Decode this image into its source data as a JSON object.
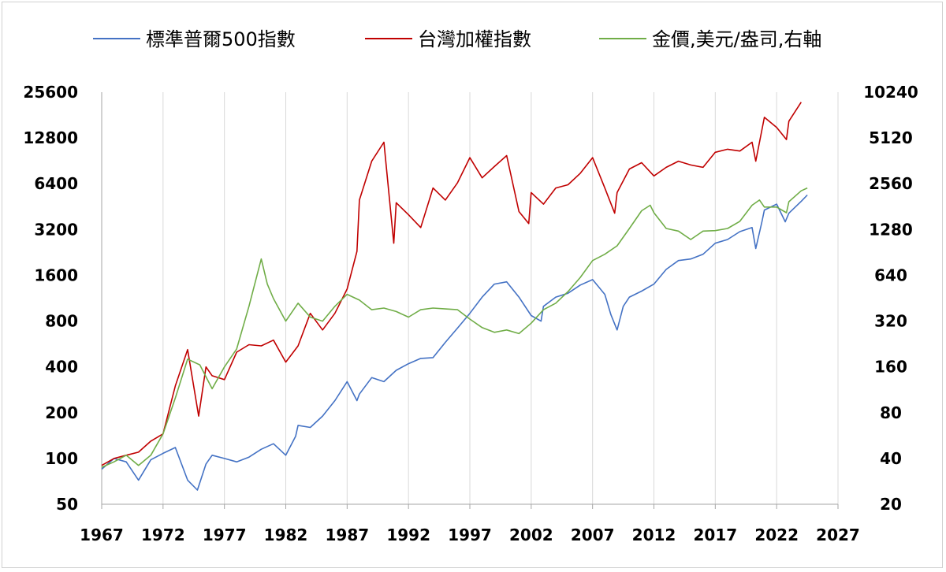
{
  "chart_data": {
    "type": "line",
    "title": "",
    "xlabel": "",
    "ylabel": "",
    "x_axis": {
      "min": 1967,
      "max": 2027,
      "ticks": [
        1967,
        1972,
        1977,
        1982,
        1987,
        1992,
        1997,
        2002,
        2007,
        2012,
        2017,
        2022,
        2027
      ]
    },
    "y_left": {
      "scale": "log2",
      "min": 50,
      "max": 25600,
      "ticks": [
        50,
        100,
        200,
        400,
        800,
        1600,
        3200,
        6400,
        12800,
        25600
      ]
    },
    "y_right": {
      "scale": "log2",
      "min": 20,
      "max": 10240,
      "ticks": [
        20,
        40,
        80,
        160,
        320,
        640,
        1280,
        2560,
        5120,
        10240
      ]
    },
    "grid": "vertical",
    "legend_position": "top",
    "series": [
      {
        "name": "標準普爾500指數",
        "color": "#4472C4",
        "axis": "left",
        "points": [
          [
            1967,
            85
          ],
          [
            1968,
            100
          ],
          [
            1969,
            95
          ],
          [
            1970,
            72
          ],
          [
            1971,
            98
          ],
          [
            1972,
            108
          ],
          [
            1973,
            118
          ],
          [
            1974,
            72
          ],
          [
            1974.8,
            62
          ],
          [
            1975.5,
            92
          ],
          [
            1976,
            105
          ],
          [
            1977,
            100
          ],
          [
            1978,
            95
          ],
          [
            1979,
            102
          ],
          [
            1980,
            115
          ],
          [
            1981,
            125
          ],
          [
            1982,
            105
          ],
          [
            1982.8,
            140
          ],
          [
            1983,
            165
          ],
          [
            1984,
            160
          ],
          [
            1985,
            190
          ],
          [
            1986,
            240
          ],
          [
            1987,
            320
          ],
          [
            1987.8,
            240
          ],
          [
            1988,
            265
          ],
          [
            1989,
            340
          ],
          [
            1990,
            320
          ],
          [
            1991,
            380
          ],
          [
            1992,
            420
          ],
          [
            1993,
            455
          ],
          [
            1994,
            460
          ],
          [
            1995,
            580
          ],
          [
            1996,
            720
          ],
          [
            1997,
            900
          ],
          [
            1998,
            1150
          ],
          [
            1999,
            1400
          ],
          [
            2000,
            1450
          ],
          [
            2001,
            1150
          ],
          [
            2002,
            870
          ],
          [
            2002.8,
            800
          ],
          [
            2003,
            1000
          ],
          [
            2004,
            1150
          ],
          [
            2005,
            1220
          ],
          [
            2006,
            1380
          ],
          [
            2007,
            1500
          ],
          [
            2008,
            1200
          ],
          [
            2008.5,
            880
          ],
          [
            2009,
            700
          ],
          [
            2009.5,
            1000
          ],
          [
            2010,
            1150
          ],
          [
            2011,
            1260
          ],
          [
            2012,
            1400
          ],
          [
            2013,
            1750
          ],
          [
            2014,
            2000
          ],
          [
            2015,
            2050
          ],
          [
            2016,
            2200
          ],
          [
            2017,
            2600
          ],
          [
            2018,
            2750
          ],
          [
            2019,
            3100
          ],
          [
            2020,
            3300
          ],
          [
            2020.3,
            2400
          ],
          [
            2020.8,
            3600
          ],
          [
            2021,
            4300
          ],
          [
            2022,
            4700
          ],
          [
            2022.7,
            3600
          ],
          [
            2023,
            4100
          ],
          [
            2024,
            4900
          ],
          [
            2024.5,
            5400
          ]
        ]
      },
      {
        "name": "台灣加權指數",
        "color": "#C00000",
        "axis": "left",
        "points": [
          [
            1967,
            90
          ],
          [
            1968,
            100
          ],
          [
            1969,
            105
          ],
          [
            1970,
            110
          ],
          [
            1971,
            130
          ],
          [
            1972,
            145
          ],
          [
            1973,
            300
          ],
          [
            1974,
            520
          ],
          [
            1974.9,
            190
          ],
          [
            1975.5,
            400
          ],
          [
            1976,
            350
          ],
          [
            1977,
            330
          ],
          [
            1978,
            500
          ],
          [
            1979,
            560
          ],
          [
            1980,
            550
          ],
          [
            1981,
            600
          ],
          [
            1982,
            430
          ],
          [
            1983,
            550
          ],
          [
            1984,
            900
          ],
          [
            1985,
            700
          ],
          [
            1986,
            900
          ],
          [
            1987,
            1300
          ],
          [
            1987.8,
            2300
          ],
          [
            1988,
            5000
          ],
          [
            1989,
            9000
          ],
          [
            1990,
            12000
          ],
          [
            1990.8,
            2600
          ],
          [
            1991,
            4800
          ],
          [
            1992,
            4000
          ],
          [
            1993,
            3300
          ],
          [
            1994,
            6000
          ],
          [
            1995,
            5000
          ],
          [
            1996,
            6500
          ],
          [
            1997,
            9500
          ],
          [
            1998,
            7000
          ],
          [
            1999,
            8300
          ],
          [
            2000,
            9800
          ],
          [
            2001,
            4200
          ],
          [
            2001.8,
            3500
          ],
          [
            2002,
            5600
          ],
          [
            2003,
            4700
          ],
          [
            2004,
            6000
          ],
          [
            2005,
            6300
          ],
          [
            2006,
            7500
          ],
          [
            2007,
            9500
          ],
          [
            2008,
            6000
          ],
          [
            2008.8,
            4100
          ],
          [
            2009,
            5600
          ],
          [
            2010,
            8000
          ],
          [
            2011,
            8800
          ],
          [
            2012,
            7200
          ],
          [
            2013,
            8200
          ],
          [
            2014,
            9000
          ],
          [
            2015,
            8500
          ],
          [
            2016,
            8200
          ],
          [
            2017,
            10300
          ],
          [
            2018,
            10800
          ],
          [
            2019,
            10500
          ],
          [
            2020,
            12000
          ],
          [
            2020.3,
            9000
          ],
          [
            2021,
            17500
          ],
          [
            2022,
            15000
          ],
          [
            2022.8,
            12500
          ],
          [
            2023,
            16500
          ],
          [
            2024,
            22000
          ]
        ]
      },
      {
        "name": "金價,美元/盎司,右軸",
        "color": "#70AD47",
        "axis": "right",
        "points": [
          [
            1967,
            35
          ],
          [
            1968,
            38
          ],
          [
            1969,
            42
          ],
          [
            1970,
            36
          ],
          [
            1971,
            42
          ],
          [
            1972,
            58
          ],
          [
            1973,
            100
          ],
          [
            1974,
            180
          ],
          [
            1975,
            165
          ],
          [
            1976,
            115
          ],
          [
            1977,
            160
          ],
          [
            1978,
            210
          ],
          [
            1979,
            400
          ],
          [
            1980,
            820
          ],
          [
            1980.5,
            560
          ],
          [
            1981,
            450
          ],
          [
            1982,
            320
          ],
          [
            1983,
            420
          ],
          [
            1984,
            340
          ],
          [
            1985,
            320
          ],
          [
            1986,
            400
          ],
          [
            1987,
            480
          ],
          [
            1988,
            440
          ],
          [
            1989,
            380
          ],
          [
            1990,
            390
          ],
          [
            1991,
            370
          ],
          [
            1992,
            340
          ],
          [
            1993,
            380
          ],
          [
            1994,
            390
          ],
          [
            1995,
            385
          ],
          [
            1996,
            380
          ],
          [
            1997,
            330
          ],
          [
            1998,
            290
          ],
          [
            1999,
            270
          ],
          [
            2000,
            280
          ],
          [
            2001,
            265
          ],
          [
            2002,
            310
          ],
          [
            2003,
            380
          ],
          [
            2004,
            420
          ],
          [
            2005,
            500
          ],
          [
            2006,
            620
          ],
          [
            2007,
            800
          ],
          [
            2008,
            880
          ],
          [
            2009,
            1000
          ],
          [
            2010,
            1300
          ],
          [
            2011,
            1700
          ],
          [
            2011.7,
            1850
          ],
          [
            2012,
            1650
          ],
          [
            2013,
            1300
          ],
          [
            2014,
            1250
          ],
          [
            2015,
            1100
          ],
          [
            2016,
            1250
          ],
          [
            2017,
            1260
          ],
          [
            2018,
            1300
          ],
          [
            2019,
            1450
          ],
          [
            2020,
            1850
          ],
          [
            2020.6,
            2000
          ],
          [
            2021,
            1800
          ],
          [
            2022,
            1800
          ],
          [
            2022.8,
            1650
          ],
          [
            2023,
            1950
          ],
          [
            2024,
            2300
          ],
          [
            2024.5,
            2400
          ]
        ]
      }
    ]
  }
}
